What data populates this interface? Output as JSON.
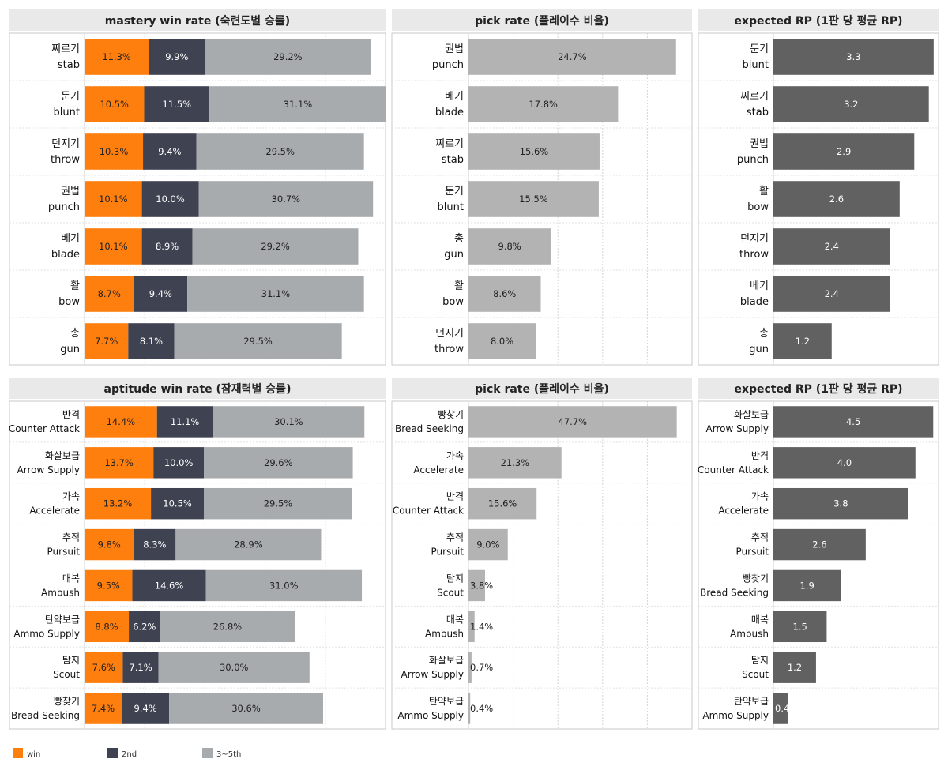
{
  "colors": {
    "win": "#ff7f0e",
    "second": "#3f4251",
    "third": "#a8abae",
    "pick": "#b3b3b3",
    "rp": "#616161"
  },
  "legend": [
    {
      "key": "win",
      "label": "win"
    },
    {
      "key": "second",
      "label": "2nd"
    },
    {
      "key": "third",
      "label": "3~5th"
    }
  ],
  "chart_data": [
    {
      "type": "bar",
      "stacked": true,
      "orientation": "horizontal",
      "title": "mastery win rate (숙련도별 승률)",
      "categories": [
        [
          "찌르기",
          "stab"
        ],
        [
          "둔기",
          "blunt"
        ],
        [
          "던지기",
          "throw"
        ],
        [
          "권법",
          "punch"
        ],
        [
          "베기",
          "blade"
        ],
        [
          "활",
          "bow"
        ],
        [
          "총",
          "gun"
        ]
      ],
      "series": [
        {
          "name": "win",
          "key": "win",
          "values": [
            11.3,
            10.5,
            10.3,
            10.1,
            10.1,
            8.7,
            7.7
          ],
          "labels": [
            "11.3%",
            "10.5%",
            "10.3%",
            "10.1%",
            "10.1%",
            "8.7%",
            "7.7%"
          ]
        },
        {
          "name": "2nd",
          "key": "second",
          "values": [
            9.9,
            11.5,
            9.4,
            10.0,
            8.9,
            9.4,
            8.1
          ],
          "labels": [
            "9.9%",
            "11.5%",
            "9.4%",
            "10.0%",
            "8.9%",
            "9.4%",
            "8.1%"
          ]
        },
        {
          "name": "3~5th",
          "key": "third",
          "values": [
            29.2,
            31.1,
            29.5,
            30.7,
            29.2,
            31.1,
            29.5
          ],
          "labels": [
            "29.2%",
            "31.1%",
            "29.5%",
            "30.7%",
            "29.2%",
            "31.1%",
            "29.5%"
          ]
        }
      ],
      "xlim": [
        0,
        53
      ],
      "grid": true
    },
    {
      "type": "bar",
      "orientation": "horizontal",
      "title": "pick rate (플레이수 비율)",
      "categories": [
        [
          "권법",
          "punch"
        ],
        [
          "베기",
          "blade"
        ],
        [
          "찌르기",
          "stab"
        ],
        [
          "둔기",
          "blunt"
        ],
        [
          "총",
          "gun"
        ],
        [
          "활",
          "bow"
        ],
        [
          "던지기",
          "throw"
        ]
      ],
      "series": [
        {
          "key": "pick",
          "values": [
            24.7,
            17.8,
            15.6,
            15.5,
            9.8,
            8.6,
            8.0
          ],
          "labels": [
            "24.7%",
            "17.8%",
            "15.6%",
            "15.5%",
            "9.8%",
            "8.6%",
            "8.0%"
          ]
        }
      ],
      "xlim": [
        0,
        26.6
      ],
      "grid": true
    },
    {
      "type": "bar",
      "orientation": "horizontal",
      "title": "expected RP (1판 당 평균 RP)",
      "categories": [
        [
          "둔기",
          "blunt"
        ],
        [
          "찌르기",
          "stab"
        ],
        [
          "권법",
          "punch"
        ],
        [
          "활",
          "bow"
        ],
        [
          "던지기",
          "throw"
        ],
        [
          "베기",
          "blade"
        ],
        [
          "총",
          "gun"
        ]
      ],
      "series": [
        {
          "key": "rp",
          "values": [
            3.3,
            3.2,
            2.9,
            2.6,
            2.4,
            2.4,
            1.2
          ],
          "labels": [
            "3.3",
            "3.2",
            "2.9",
            "2.6",
            "2.4",
            "2.4",
            "1.2"
          ]
        }
      ],
      "xlim": [
        0,
        3.4
      ],
      "grid": false
    },
    {
      "type": "bar",
      "stacked": true,
      "orientation": "horizontal",
      "title": "aptitude win rate (잠재력별 승률)",
      "categories": [
        [
          "반격",
          "Counter Attack"
        ],
        [
          "화살보급",
          "Arrow Supply"
        ],
        [
          "가속",
          "Accelerate"
        ],
        [
          "추적",
          "Pursuit"
        ],
        [
          "매복",
          "Ambush"
        ],
        [
          "탄약보급",
          "Ammo Supply"
        ],
        [
          "탐지",
          "Scout"
        ],
        [
          "빵찾기",
          "Bread Seeking"
        ]
      ],
      "series": [
        {
          "name": "win",
          "key": "win",
          "values": [
            14.4,
            13.7,
            13.2,
            9.8,
            9.5,
            8.8,
            7.6,
            7.4
          ],
          "labels": [
            "14.4%",
            "13.7%",
            "13.2%",
            "9.8%",
            "9.5%",
            "8.8%",
            "7.6%",
            "7.4%"
          ]
        },
        {
          "name": "2nd",
          "key": "second",
          "values": [
            11.1,
            10.0,
            10.5,
            8.3,
            14.6,
            6.2,
            7.1,
            9.4
          ],
          "labels": [
            "11.1%",
            "10.0%",
            "10.5%",
            "8.3%",
            "14.6%",
            "6.2%",
            "7.1%",
            "9.4%"
          ]
        },
        {
          "name": "3~5th",
          "key": "third",
          "values": [
            30.1,
            29.6,
            29.5,
            28.9,
            31.0,
            26.8,
            30.0,
            30.6
          ],
          "labels": [
            "30.1%",
            "29.6%",
            "29.5%",
            "28.9%",
            "31.0%",
            "26.8%",
            "30.0%",
            "30.6%"
          ]
        }
      ],
      "xlim": [
        0,
        59.8
      ],
      "grid": true
    },
    {
      "type": "bar",
      "orientation": "horizontal",
      "title": "pick rate (플레이수 비율)",
      "categories": [
        [
          "빵찾기",
          "Bread Seeking"
        ],
        [
          "가속",
          "Accelerate"
        ],
        [
          "반격",
          "Counter Attack"
        ],
        [
          "추적",
          "Pursuit"
        ],
        [
          "탐지",
          "Scout"
        ],
        [
          "매복",
          "Ambush"
        ],
        [
          "화살보급",
          "Arrow Supply"
        ],
        [
          "탄약보급",
          "Ammo Supply"
        ]
      ],
      "series": [
        {
          "key": "pick",
          "values": [
            47.7,
            21.3,
            15.6,
            9.0,
            3.8,
            1.4,
            0.7,
            0.4
          ],
          "labels": [
            "47.7%",
            "21.3%",
            "15.6%",
            "9.0%",
            "3.8%",
            "1.4%",
            "0.7%",
            "0.4%"
          ]
        }
      ],
      "xlim": [
        0,
        51.2
      ],
      "grid": true
    },
    {
      "type": "bar",
      "orientation": "horizontal",
      "title": "expected RP (1판 당 평균 RP)",
      "categories": [
        [
          "화살보급",
          "Arrow Supply"
        ],
        [
          "반격",
          "Counter Attack"
        ],
        [
          "가속",
          "Accelerate"
        ],
        [
          "추적",
          "Pursuit"
        ],
        [
          "빵찾기",
          "Bread Seeking"
        ],
        [
          "매복",
          "Ambush"
        ],
        [
          "탐지",
          "Scout"
        ],
        [
          "탄약보급",
          "Ammo Supply"
        ]
      ],
      "series": [
        {
          "key": "rp",
          "values": [
            4.5,
            4.0,
            3.8,
            2.6,
            1.9,
            1.5,
            1.2,
            0.4
          ],
          "labels": [
            "4.5",
            "4.0",
            "3.8",
            "2.6",
            "1.9",
            "1.5",
            "1.2",
            "0.4"
          ]
        }
      ],
      "xlim": [
        0,
        4.65
      ],
      "grid": false
    }
  ]
}
